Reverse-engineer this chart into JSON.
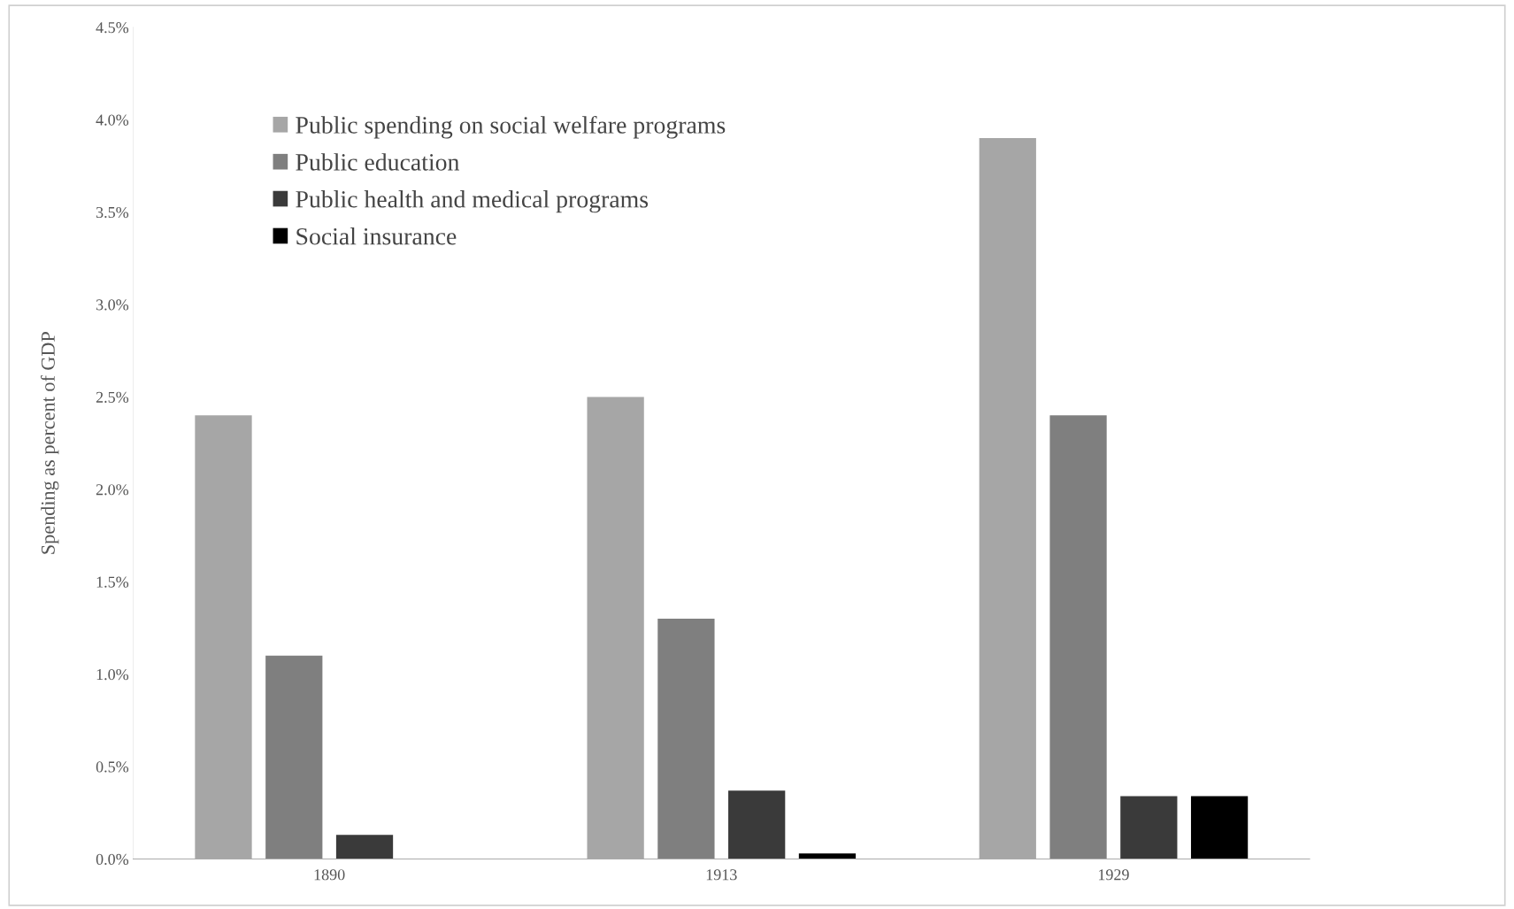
{
  "chart_data": {
    "type": "bar",
    "ylabel": "Spending as percent of GDP",
    "categories": [
      "1890",
      "1913",
      "1929"
    ],
    "series": [
      {
        "name": "Public spending on social welfare programs",
        "color": "#a6a6a6",
        "values": [
          2.4,
          2.5,
          3.9
        ]
      },
      {
        "name": "Public education",
        "color": "#7f7f7f",
        "values": [
          1.1,
          1.3,
          2.4
        ]
      },
      {
        "name": "Public health and medical programs",
        "color": "#3a3a3a",
        "values": [
          0.13,
          0.37,
          0.34
        ]
      },
      {
        "name": "Social insurance",
        "color": "#000000",
        "values": [
          null,
          0.03,
          0.34
        ]
      }
    ],
    "ylim": [
      0,
      4.5
    ],
    "yticks": [
      {
        "value": 0,
        "label": "0.0%"
      },
      {
        "value": 0.5,
        "label": "0.5%"
      },
      {
        "value": 1,
        "label": "1.0%"
      },
      {
        "value": 1.5,
        "label": "1.5%"
      },
      {
        "value": 2,
        "label": "2.0%"
      },
      {
        "value": 2.5,
        "label": "2.5%"
      },
      {
        "value": 3,
        "label": "3.0%"
      },
      {
        "value": 3.5,
        "label": "3.5%"
      },
      {
        "value": 4,
        "label": "4.0%"
      },
      {
        "value": 4.5,
        "label": "4.5%"
      }
    ],
    "grid": false,
    "legend": "top left"
  }
}
